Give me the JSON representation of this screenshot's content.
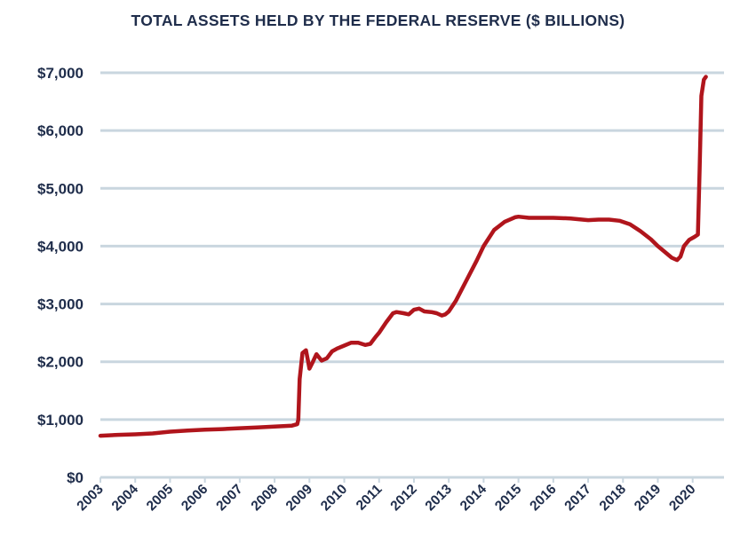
{
  "chart_data": {
    "type": "line",
    "title": "TOTAL ASSETS HELD BY THE FEDERAL RESERVE ($ BILLIONS)",
    "xlabel": "",
    "ylabel": "",
    "xlim": [
      2003,
      2020.9
    ],
    "ylim": [
      0,
      7000
    ],
    "grid": true,
    "y_ticks": [
      0,
      1000,
      2000,
      3000,
      4000,
      5000,
      6000,
      7000
    ],
    "y_tick_labels": [
      "$0",
      "$1,000",
      "$2,000",
      "$3,000",
      "$4,000",
      "$5,000",
      "$6,000",
      "$7,000"
    ],
    "x_ticks": [
      2003,
      2004,
      2005,
      2006,
      2007,
      2008,
      2009,
      2010,
      2011,
      2012,
      2013,
      2014,
      2015,
      2016,
      2017,
      2018,
      2019,
      2020
    ],
    "x_tick_labels": [
      "2003",
      "2004",
      "2005",
      "2006",
      "2007",
      "2008",
      "2009",
      "2010",
      "2011",
      "2012",
      "2013",
      "2014",
      "2015",
      "2016",
      "2017",
      "2018",
      "2019",
      "2020"
    ],
    "colors": {
      "line": "#b0151c",
      "grid": "#c9d6df",
      "text": "#1f2d4b"
    },
    "series": [
      {
        "x": [
          2003.0,
          2003.5,
          2004.0,
          2004.5,
          2005.0,
          2005.5,
          2006.0,
          2006.5,
          2007.0,
          2007.5,
          2008.0,
          2008.5,
          2008.65,
          2008.68,
          2008.72,
          2008.8,
          2008.9,
          2008.95,
          2009.0,
          2009.1,
          2009.2,
          2009.35,
          2009.5,
          2009.65,
          2009.8,
          2010.0,
          2010.2,
          2010.4,
          2010.6,
          2010.75,
          2010.9,
          2011.0,
          2011.2,
          2011.4,
          2011.5,
          2011.7,
          2011.85,
          2012.0,
          2012.15,
          2012.3,
          2012.5,
          2012.65,
          2012.8,
          2012.9,
          2013.0,
          2013.2,
          2013.5,
          2013.8,
          2014.0,
          2014.3,
          2014.6,
          2014.9,
          2015.0,
          2015.3,
          2015.6,
          2016.0,
          2016.5,
          2017.0,
          2017.3,
          2017.6,
          2017.9,
          2018.2,
          2018.5,
          2018.8,
          2019.0,
          2019.2,
          2019.4,
          2019.55,
          2019.65,
          2019.75,
          2019.9,
          2020.05,
          2020.15,
          2020.2,
          2020.25,
          2020.32,
          2020.38
        ],
        "values": [
          720,
          735,
          745,
          760,
          790,
          810,
          825,
          835,
          850,
          865,
          880,
          895,
          920,
          1000,
          1700,
          2150,
          2200,
          2050,
          1880,
          2000,
          2130,
          2020,
          2060,
          2180,
          2230,
          2280,
          2330,
          2330,
          2290,
          2310,
          2430,
          2500,
          2680,
          2840,
          2860,
          2840,
          2820,
          2900,
          2920,
          2870,
          2860,
          2840,
          2800,
          2820,
          2870,
          3050,
          3400,
          3750,
          4000,
          4280,
          4420,
          4500,
          4510,
          4490,
          4490,
          4490,
          4480,
          4450,
          4460,
          4460,
          4440,
          4380,
          4260,
          4120,
          4000,
          3900,
          3800,
          3760,
          3820,
          4000,
          4110,
          4160,
          4200,
          5300,
          6600,
          6880,
          6930
        ]
      }
    ]
  }
}
